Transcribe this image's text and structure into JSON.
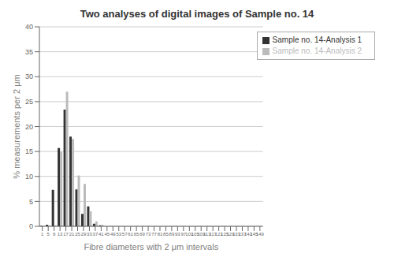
{
  "chart_data": {
    "type": "bar",
    "title": "Two analyses of digital images of Sample no. 14",
    "xlabel": "Fibre diameters with 2 μm intervals",
    "ylabel": "% measurements per 2 μm",
    "categories": [
      1,
      5,
      9,
      13,
      17,
      21,
      25,
      29,
      33,
      37,
      41,
      45,
      49,
      53,
      57,
      61,
      65,
      69,
      73,
      77,
      81,
      85,
      89,
      93,
      97,
      101,
      105,
      109,
      113,
      117,
      121,
      125,
      129,
      133,
      137,
      141,
      145,
      149
    ],
    "series": [
      {
        "name": "Sample no. 14-Analysis 1",
        "color": "#333333",
        "values": [
          0.1,
          0.3,
          7.3,
          15.7,
          23.4,
          18.0,
          7.4,
          2.5,
          4.0,
          0.5,
          0.2,
          0.0,
          0.0,
          0.0,
          0.0,
          0.0,
          0.0,
          0.0,
          0.0,
          0.0,
          0.0,
          0.0,
          0.0,
          0.0,
          0.0,
          0.0,
          0.0,
          0.0,
          0.0,
          0.0,
          0.0,
          0.0,
          0.0,
          0.0,
          0.0,
          0.0,
          0.0,
          0.0
        ]
      },
      {
        "name": "Sample no. 14-Analysis 2",
        "color": "#bbbbbb",
        "values": [
          0.0,
          0.1,
          0.2,
          14.9,
          27.0,
          17.5,
          10.2,
          8.5,
          3.0,
          1.0,
          0.3,
          0.0,
          0.0,
          0.0,
          0.0,
          0.0,
          0.0,
          0.0,
          0.0,
          0.0,
          0.0,
          0.0,
          0.0,
          0.0,
          0.0,
          0.0,
          0.0,
          0.0,
          0.0,
          0.0,
          0.0,
          0.0,
          0.0,
          0.1,
          0.0,
          0.0,
          0.0,
          0.0
        ]
      }
    ],
    "ylim": [
      0,
      40
    ],
    "yticks": [
      0,
      5,
      10,
      15,
      20,
      25,
      30,
      35,
      40
    ],
    "grid": true,
    "legend": "upper right"
  }
}
